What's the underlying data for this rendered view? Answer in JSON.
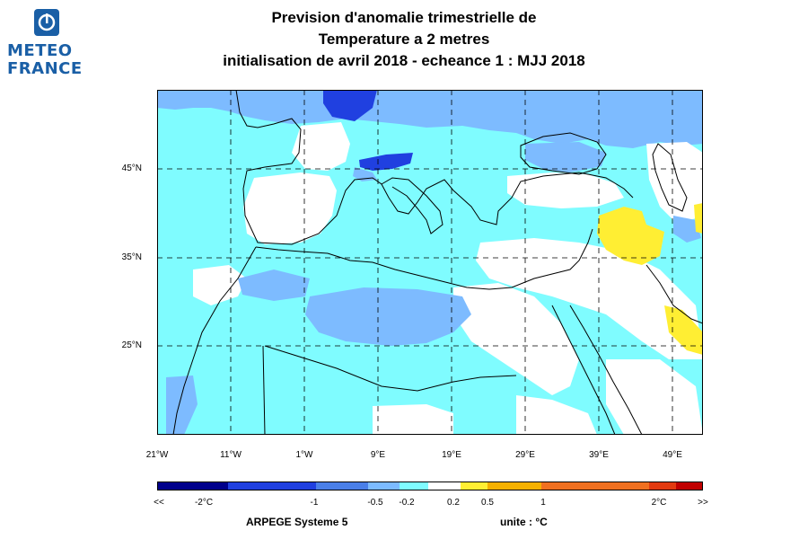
{
  "logo": {
    "line1": "METEO",
    "line2": "FRANCE",
    "color": "#1a5fa6"
  },
  "title": {
    "line1": "Prevision d'anomalie trimestrielle de",
    "line2": "Temperature a 2 metres",
    "line3": "initialisation de avril 2018  -  echeance 1 : MJJ 2018"
  },
  "map": {
    "lat_ticks": [
      "45°N",
      "35°N",
      "25°N"
    ],
    "lon_ticks": [
      "21°W",
      "11°W",
      "1°W",
      "9°E",
      "19°E",
      "29°E",
      "39°E",
      "49°E"
    ],
    "lon_range": [
      -21,
      53
    ],
    "lat_range": [
      16,
      55
    ]
  },
  "legend": {
    "colors": [
      "#00008b",
      "#2040e0",
      "#4a7fe8",
      "#7dbbff",
      "#7ffcff",
      "#ffffff",
      "#ffee33",
      "#f5b000",
      "#f07020",
      "#e23a10",
      "#c00000"
    ],
    "labels": [
      "<<",
      "-2°C",
      "-1",
      "-0.5",
      "-0.2",
      "0.2",
      "0.5",
      "1",
      "2°C",
      ">>"
    ],
    "under_label": "<<",
    "over_label": ">>"
  },
  "footer": {
    "model": "ARPEGE Systeme 5",
    "unit": "unite : °C"
  }
}
